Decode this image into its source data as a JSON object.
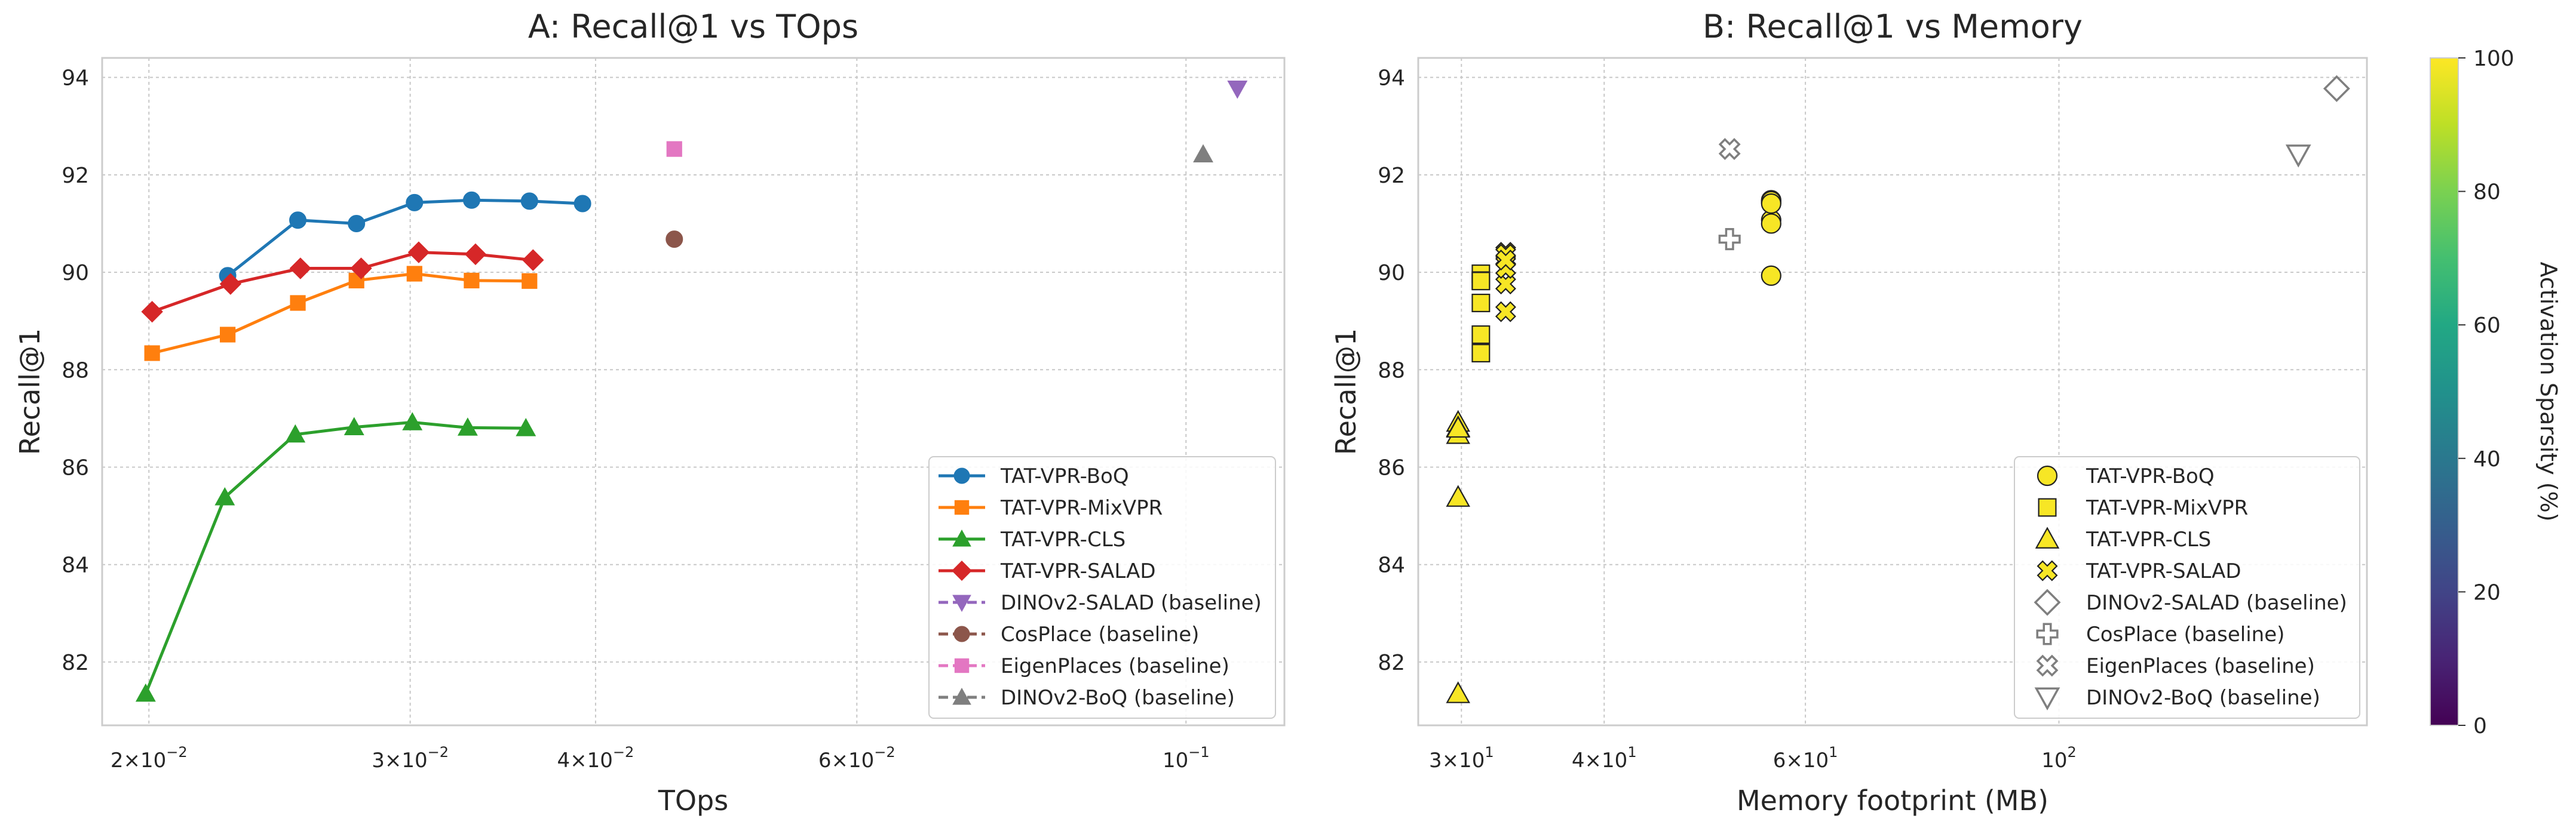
{
  "figure": {
    "colorbar": {
      "label": "Activation Sparsity (%)",
      "range": [
        0,
        100
      ],
      "ticks": [
        "0",
        "20",
        "40",
        "60",
        "80",
        "100"
      ],
      "colormap": "viridis"
    }
  },
  "chart_data": [
    {
      "type": "line",
      "title": "A: Recall@1 vs TOps",
      "xlabel": "TOps",
      "ylabel": "Recall@1",
      "xscale": "log",
      "xlim": [
        0.0186,
        0.1165
      ],
      "ylim": [
        80.7,
        94.4
      ],
      "xticks": [
        {
          "value": 0.02,
          "base": "2",
          "exp": "−2"
        },
        {
          "value": 0.03,
          "base": "3",
          "exp": "−2"
        },
        {
          "value": 0.04,
          "base": "4",
          "exp": "−2"
        },
        {
          "value": 0.06,
          "base": "6",
          "exp": "−2"
        },
        {
          "value": 0.1,
          "base": "10",
          "exp": "−1",
          "form": "pow"
        }
      ],
      "yticks": [
        82,
        84,
        86,
        88,
        90,
        92,
        94
      ],
      "grid": true,
      "legend_position": "lower right",
      "series": [
        {
          "name": "TAT-VPR-BoQ",
          "color": "#1f77b4",
          "marker": "circle",
          "line": "solid",
          "x": [
            0.0226,
            0.0252,
            0.0276,
            0.0302,
            0.033,
            0.0361,
            0.0392
          ],
          "y": [
            89.93,
            91.07,
            91.0,
            91.43,
            91.48,
            91.46,
            91.41
          ]
        },
        {
          "name": "TAT-VPR-MixVPR",
          "color": "#ff7f0e",
          "marker": "square",
          "line": "solid",
          "x": [
            0.0201,
            0.0226,
            0.0252,
            0.0276,
            0.0302,
            0.033,
            0.0361
          ],
          "y": [
            88.34,
            88.72,
            89.37,
            89.83,
            89.97,
            89.83,
            89.82
          ]
        },
        {
          "name": "TAT-VPR-CLS",
          "color": "#2ca02c",
          "marker": "triangle-up",
          "line": "solid",
          "x": [
            0.0199,
            0.0225,
            0.0251,
            0.0275,
            0.0301,
            0.0328,
            0.0359
          ],
          "y": [
            81.35,
            85.38,
            86.67,
            86.82,
            86.92,
            86.81,
            86.8
          ]
        },
        {
          "name": "TAT-VPR-SALAD",
          "color": "#d62728",
          "marker": "diamond",
          "line": "solid",
          "x": [
            0.0201,
            0.0227,
            0.0253,
            0.0278,
            0.0304,
            0.0332,
            0.0363
          ],
          "y": [
            89.19,
            89.76,
            90.08,
            90.08,
            90.41,
            90.37,
            90.25
          ]
        },
        {
          "name": "DINOv2-SALAD (baseline)",
          "color": "#9467bd",
          "marker": "triangle-down",
          "line": "dashed",
          "x": [
            0.1083
          ],
          "y": [
            93.77
          ]
        },
        {
          "name": "CosPlace (baseline)",
          "color": "#8c564b",
          "marker": "circle",
          "line": "dashed",
          "x": [
            0.0452
          ],
          "y": [
            90.68
          ]
        },
        {
          "name": "EigenPlaces (baseline)",
          "color": "#e377c2",
          "marker": "square",
          "line": "dashed",
          "x": [
            0.0452
          ],
          "y": [
            92.53
          ]
        },
        {
          "name": "DINOv2-BoQ (baseline)",
          "color": "#7f7f7f",
          "marker": "triangle-up",
          "line": "dashed",
          "x": [
            0.1027
          ],
          "y": [
            92.42
          ]
        }
      ]
    },
    {
      "type": "scatter",
      "title": "B: Recall@1 vs Memory",
      "xlabel": "Memory footprint (MB)",
      "ylabel": "Recall@1",
      "xscale": "log",
      "xlim": [
        27.5,
        186
      ],
      "ylim": [
        80.7,
        94.4
      ],
      "xticks": [
        {
          "value": 30,
          "base": "3",
          "exp": "1"
        },
        {
          "value": 40,
          "base": "4",
          "exp": "1"
        },
        {
          "value": 60,
          "base": "6",
          "exp": "1"
        },
        {
          "value": 100,
          "base": "10",
          "exp": "2",
          "form": "pow"
        }
      ],
      "yticks": [
        82,
        84,
        86,
        88,
        90,
        92,
        94
      ],
      "grid": true,
      "legend_position": "lower right",
      "series": [
        {
          "name": "TAT-VPR-BoQ",
          "marker": "circle",
          "filled": true,
          "x": [
            56.0,
            56.0,
            56.0,
            56.0,
            56.0,
            56.0,
            56.0
          ],
          "y": [
            89.93,
            91.07,
            91.0,
            91.43,
            91.48,
            91.46,
            91.41
          ],
          "sparsity": [
            99,
            99,
            99,
            99,
            99,
            99,
            99
          ]
        },
        {
          "name": "TAT-VPR-MixVPR",
          "marker": "square",
          "filled": true,
          "x": [
            31.2,
            31.2,
            31.2,
            31.2,
            31.2,
            31.2,
            31.2
          ],
          "y": [
            88.34,
            88.72,
            89.37,
            89.83,
            89.97,
            89.83,
            89.82
          ],
          "sparsity": [
            99,
            99,
            99,
            99,
            99,
            99,
            99
          ]
        },
        {
          "name": "TAT-VPR-CLS",
          "marker": "triangle-up",
          "filled": true,
          "x": [
            29.8,
            29.8,
            29.8,
            29.8,
            29.8,
            29.8,
            29.8
          ],
          "y": [
            81.35,
            85.38,
            86.67,
            86.82,
            86.92,
            86.81,
            86.8
          ],
          "sparsity": [
            99,
            99,
            99,
            99,
            99,
            99,
            99
          ]
        },
        {
          "name": "TAT-VPR-SALAD",
          "marker": "x-filled",
          "filled": true,
          "x": [
            32.8,
            32.8,
            32.8,
            32.8,
            32.8,
            32.8,
            32.8
          ],
          "y": [
            89.19,
            89.76,
            90.08,
            90.08,
            90.41,
            90.37,
            90.25
          ],
          "sparsity": [
            99,
            99,
            99,
            99,
            99,
            99,
            99
          ]
        },
        {
          "name": "DINOv2-SALAD (baseline)",
          "marker": "diamond",
          "filled": false,
          "x": [
            175.0
          ],
          "y": [
            93.77
          ]
        },
        {
          "name": "CosPlace (baseline)",
          "marker": "plus-filled",
          "filled": false,
          "x": [
            51.5
          ],
          "y": [
            90.68
          ]
        },
        {
          "name": "EigenPlaces (baseline)",
          "marker": "x-filled",
          "filled": false,
          "x": [
            51.5
          ],
          "y": [
            92.53
          ]
        },
        {
          "name": "DINOv2-BoQ (baseline)",
          "marker": "triangle-down",
          "filled": false,
          "x": [
            162.0
          ],
          "y": [
            92.42
          ]
        }
      ]
    }
  ]
}
